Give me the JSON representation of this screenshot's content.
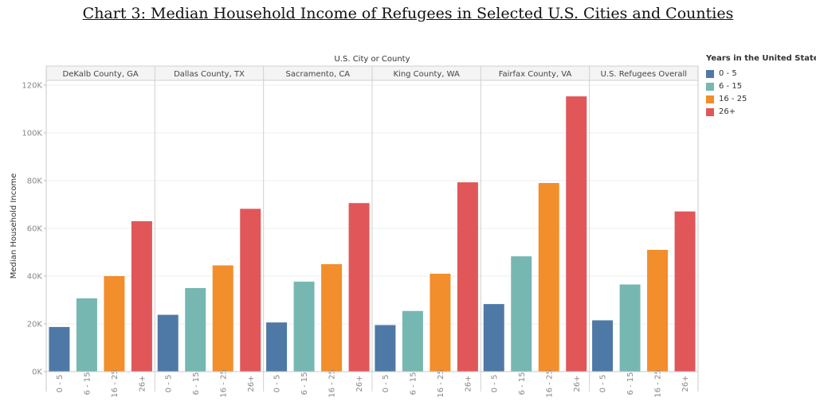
{
  "title": "Chart 3: Median Household Income of Refugees in Selected U.S. Cities and Counties",
  "chart_data": {
    "type": "bar",
    "facet_title": "U.S. City or County",
    "panels": [
      "DeKalb County, GA",
      "Dallas County, TX",
      "Sacramento, CA",
      "King County, WA",
      "Fairfax County, VA",
      "U.S. Refugees Overall"
    ],
    "categories": [
      "0 - 5",
      "6 - 15",
      "16 - 25",
      "26+"
    ],
    "ylabel": "Median Household Income",
    "ylim": [
      0,
      120000
    ],
    "yticks": [
      0,
      20000,
      40000,
      60000,
      80000,
      100000,
      120000
    ],
    "ytick_labels": [
      "0K",
      "20K",
      "40K",
      "60K",
      "80K",
      "100K",
      "120K"
    ],
    "values": [
      [
        18700,
        30700,
        40000,
        63000
      ],
      [
        23800,
        35000,
        44500,
        68200
      ],
      [
        20600,
        37700,
        45000,
        70600
      ],
      [
        19500,
        25400,
        41000,
        79300
      ],
      [
        28300,
        48300,
        79000,
        115300
      ],
      [
        21500,
        36500,
        51000,
        67100
      ]
    ],
    "colors": [
      "#4e79a7",
      "#76b7b2",
      "#f28e2b",
      "#e15759"
    ],
    "legend": {
      "title": "Years in the United States",
      "position": "right",
      "items": [
        "0 - 5",
        "6 - 15",
        "16 - 25",
        "26+"
      ]
    },
    "grid": true
  }
}
